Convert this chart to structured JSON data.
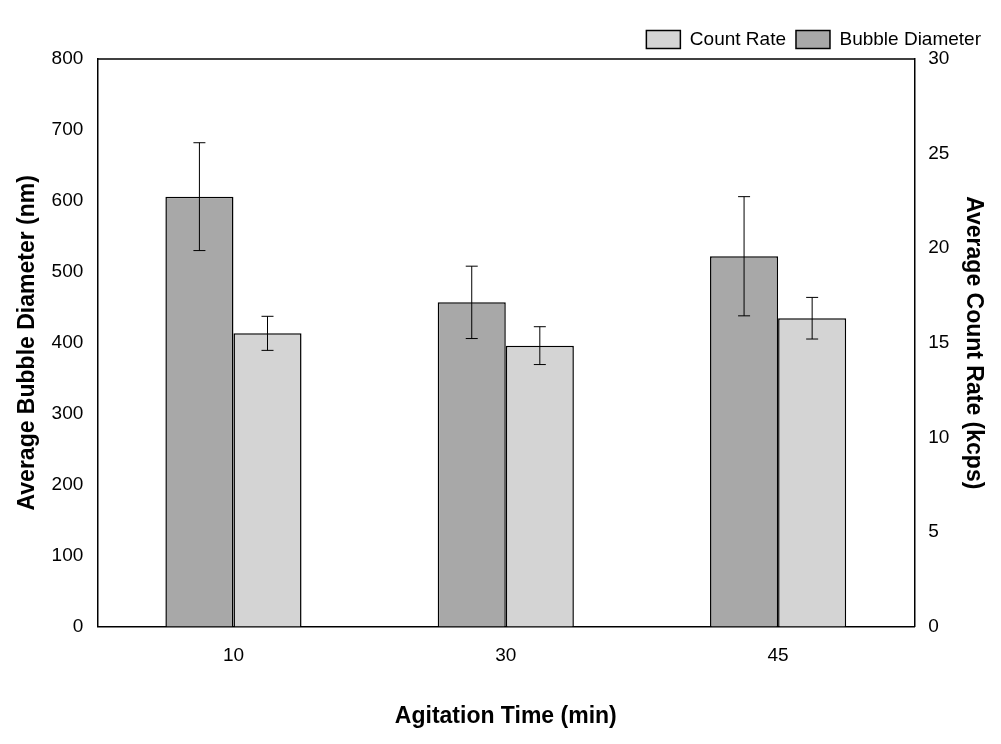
{
  "chart_data": {
    "type": "bar",
    "xlabel": "Agitation Time (min)",
    "ylabel": "Average Bubble Diameter (nm)",
    "y2label": "Average Count Rate (kcps)",
    "categories": [
      "10",
      "30",
      "45"
    ],
    "series": [
      {
        "name": "Bubble Diameter",
        "color": "#a8a8a8",
        "values": [
          606,
          457,
          522
        ],
        "errors": [
          76,
          51,
          84
        ]
      },
      {
        "name": "Count Rate",
        "color": "#d4d4d4",
        "axis": "y2",
        "values": [
          15.5,
          14.85,
          16.3
        ],
        "errors": [
          0.9,
          1.0,
          1.1
        ]
      }
    ],
    "ylim": [
      0,
      800
    ],
    "yticks": [
      0,
      100,
      200,
      300,
      400,
      500,
      600,
      700,
      800
    ],
    "y2lim": [
      0,
      30
    ],
    "y2ticks": [
      0,
      5,
      10,
      15,
      20,
      25,
      30
    ],
    "grid": false,
    "legend": "top right"
  }
}
